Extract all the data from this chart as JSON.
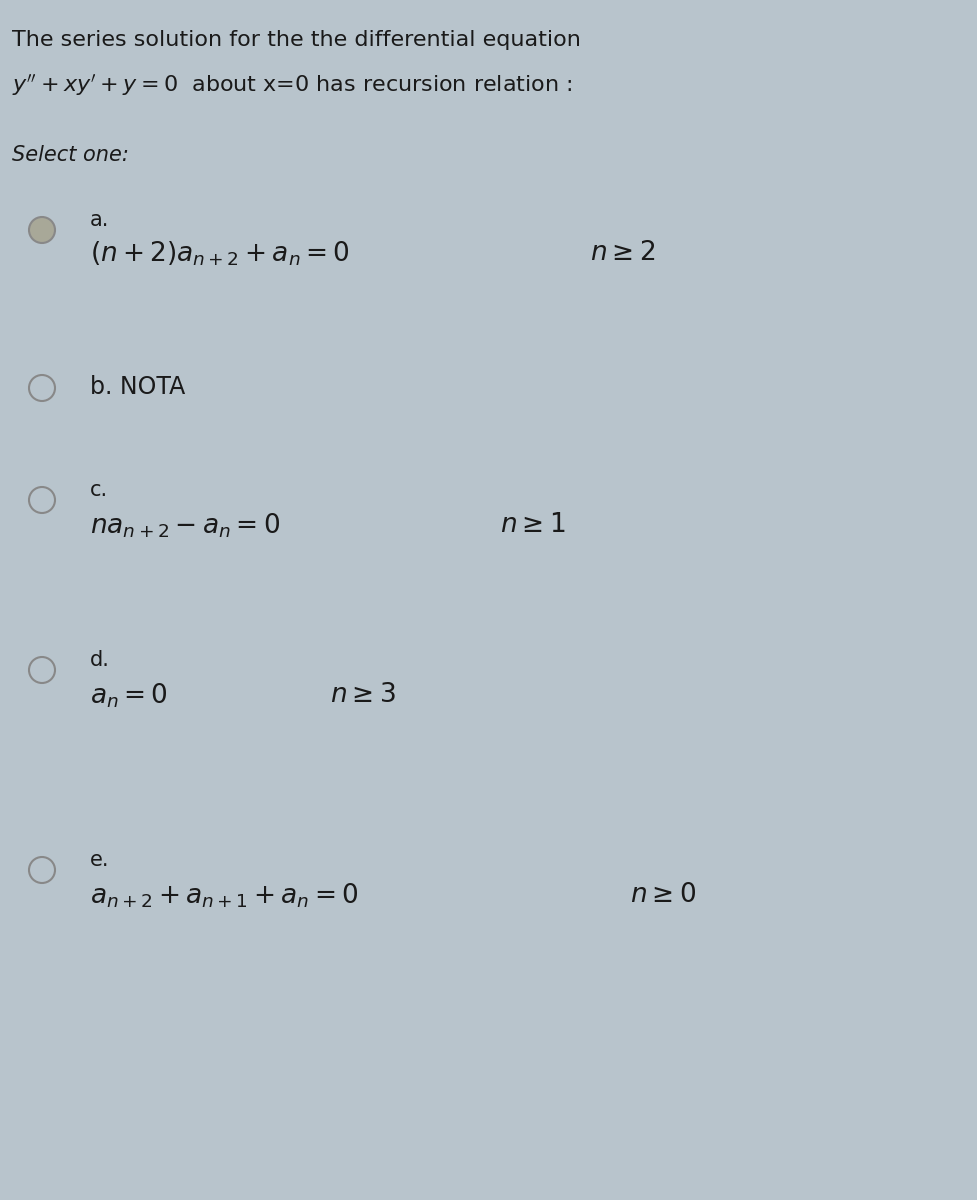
{
  "background_color": "#b8c4cc",
  "title_line1": "The series solution for the the differential equation",
  "title_line2_prefix": "y' + xy' + y = 0  about x=0 has recursion relation :",
  "select_one": "Select one:",
  "text_color": "#1a1a1a",
  "radio_color": "#888888",
  "radio_fill_color": "#a8a898",
  "font_size_title": 16,
  "font_size_label": 15,
  "font_size_formula": 19,
  "font_size_select": 15,
  "option_a_label": "a.",
  "option_a_formula": "$(n+2)a_{n+2}+a_{n}=0$",
  "option_a_condition": "$n\\geq 2$",
  "option_a_radio_filled": true,
  "option_b_label": "b. NOTA",
  "option_c_label": "c.",
  "option_c_formula": "$na_{n+2}-a_{n}=0$",
  "option_c_condition": "$n\\geq 1$",
  "option_d_label": "d.",
  "option_d_formula": "$a_{n}=0$",
  "option_d_condition": "$n\\geq 3$",
  "option_e_label": "e.",
  "option_e_formula": "$a_{n+2}+a_{n+1}+a_{n}=0$",
  "option_e_condition": "$n\\geq 0$"
}
